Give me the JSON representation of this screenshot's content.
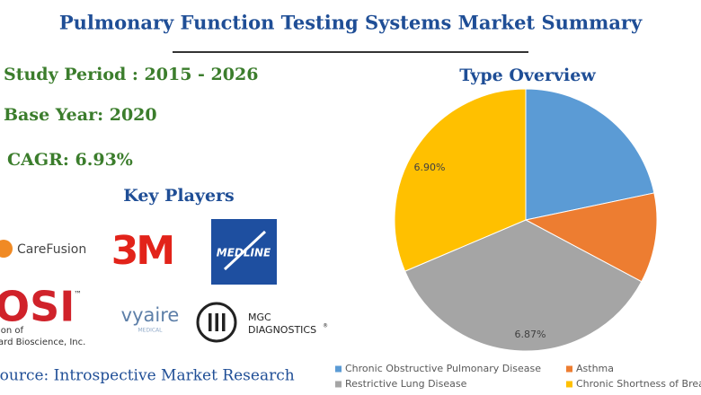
{
  "title": "Pulmonary Function Testing Systems Market Summary",
  "info": [
    "Study Period : 2015 - 2026",
    "Base Year: 2020",
    "CAGR: 6.93%"
  ],
  "key_players": {
    "heading": "Key Players",
    "logos": [
      "CareFusion",
      "3M",
      "MEDLINE",
      "OSI",
      "™",
      "ion of",
      "ard Bioscience, Inc.",
      "vyaire",
      "MEDICAL",
      "MGC",
      "DIAGNOSTICS",
      "®"
    ]
  },
  "source": "Source: Introspective Market Research",
  "chart_data": {
    "type": "pie",
    "title": "Type Overview",
    "categories": [
      "Chronic Obstructive Pulmonary Disease",
      "Asthma",
      "Restrictive Lung Disease",
      "Chronic Shortness of Breath"
    ],
    "values": [
      21.7,
      11.1,
      35.8,
      31.4
    ],
    "colors": [
      "#5b9bd5",
      "#ed7d31",
      "#a5a5a5",
      "#ffc000"
    ],
    "annotations": [
      "6.90%",
      "6.87%"
    ]
  }
}
